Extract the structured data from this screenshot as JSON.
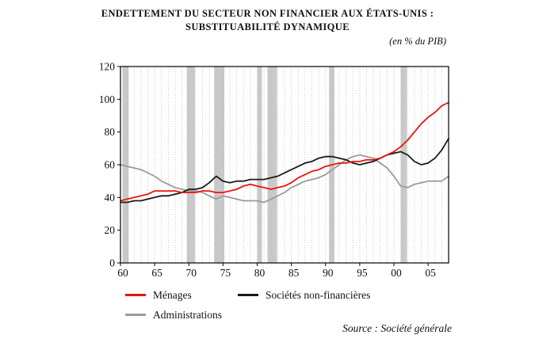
{
  "title": {
    "line1": "ENDETTEMENT DU SECTEUR NON FINANCIER AUX ÉTATS-UNIS :",
    "line2": "SUBSTITUABILITÉ DYNAMIQUE"
  },
  "unit_note": "(en % du PIB)",
  "source": "Source : Société générale",
  "legend": [
    {
      "label": "Ménages",
      "color": "#e8140f"
    },
    {
      "label": "Sociétés non-financières",
      "color": "#1a1a1a"
    },
    {
      "label": "Administrations",
      "color": "#9b9b9b"
    }
  ],
  "chart_data": {
    "type": "line",
    "title": "ENDETTEMENT DU SECTEUR NON FINANCIER AUX ÉTATS-UNIS : SUBSTITUABILITÉ DYNAMIQUE",
    "unit": "en % du PIB",
    "x_range": [
      1960,
      2008
    ],
    "x_step": 1,
    "ylim": [
      0,
      120
    ],
    "yticks": [
      0,
      20,
      40,
      60,
      80,
      100,
      120
    ],
    "xticks": [
      1960,
      1965,
      1970,
      1975,
      1980,
      1985,
      1990,
      1995,
      2000,
      2005
    ],
    "xtick_labels": [
      "60",
      "65",
      "70",
      "75",
      "80",
      "85",
      "90",
      "95",
      "00",
      "05"
    ],
    "grid": "vertical-dotted-yearly",
    "colors": {
      "band": "#c9c9c9",
      "grid": "#bcbcbc",
      "frame": "#000000"
    },
    "recession_bands": [
      [
        1960.3,
        1961.2
      ],
      [
        1969.7,
        1970.9
      ],
      [
        1973.7,
        1975.2
      ],
      [
        1980.0,
        1980.7
      ],
      [
        1981.5,
        1982.9
      ],
      [
        1990.5,
        1991.3
      ],
      [
        2001.0,
        2001.9
      ]
    ],
    "series": [
      {
        "name": "Ménages",
        "color": "#e8140f",
        "values": [
          38,
          39,
          40,
          41,
          42,
          44,
          44,
          44,
          44,
          43,
          43,
          43,
          44,
          44,
          43,
          43,
          44,
          45,
          47,
          48,
          47,
          46,
          45,
          46,
          47,
          49,
          52,
          54,
          56,
          57,
          59,
          60,
          61,
          61,
          62,
          62,
          63,
          63,
          64,
          66,
          68,
          71,
          75,
          80,
          85,
          89,
          92,
          96,
          98
        ]
      },
      {
        "name": "Sociétés non-financières",
        "color": "#1a1a1a",
        "values": [
          37,
          37,
          38,
          38,
          39,
          40,
          41,
          41,
          42,
          43,
          45,
          45,
          46,
          49,
          53,
          50,
          49,
          50,
          50,
          51,
          51,
          51,
          52,
          53,
          55,
          57,
          59,
          61,
          62,
          64,
          65,
          65,
          64,
          63,
          61,
          60,
          61,
          62,
          64,
          66,
          67,
          68,
          66,
          62,
          60,
          61,
          64,
          69,
          76
        ]
      },
      {
        "name": "Administrations",
        "color": "#9b9b9b",
        "values": [
          60,
          59,
          58,
          57,
          55,
          53,
          50,
          48,
          46,
          45,
          44,
          44,
          43,
          41,
          39,
          41,
          40,
          39,
          38,
          38,
          38,
          37,
          39,
          41,
          43,
          46,
          48,
          50,
          51,
          52,
          54,
          57,
          60,
          63,
          65,
          66,
          65,
          64,
          61,
          58,
          53,
          47,
          46,
          48,
          49,
          50,
          50,
          50,
          53
        ]
      }
    ]
  }
}
